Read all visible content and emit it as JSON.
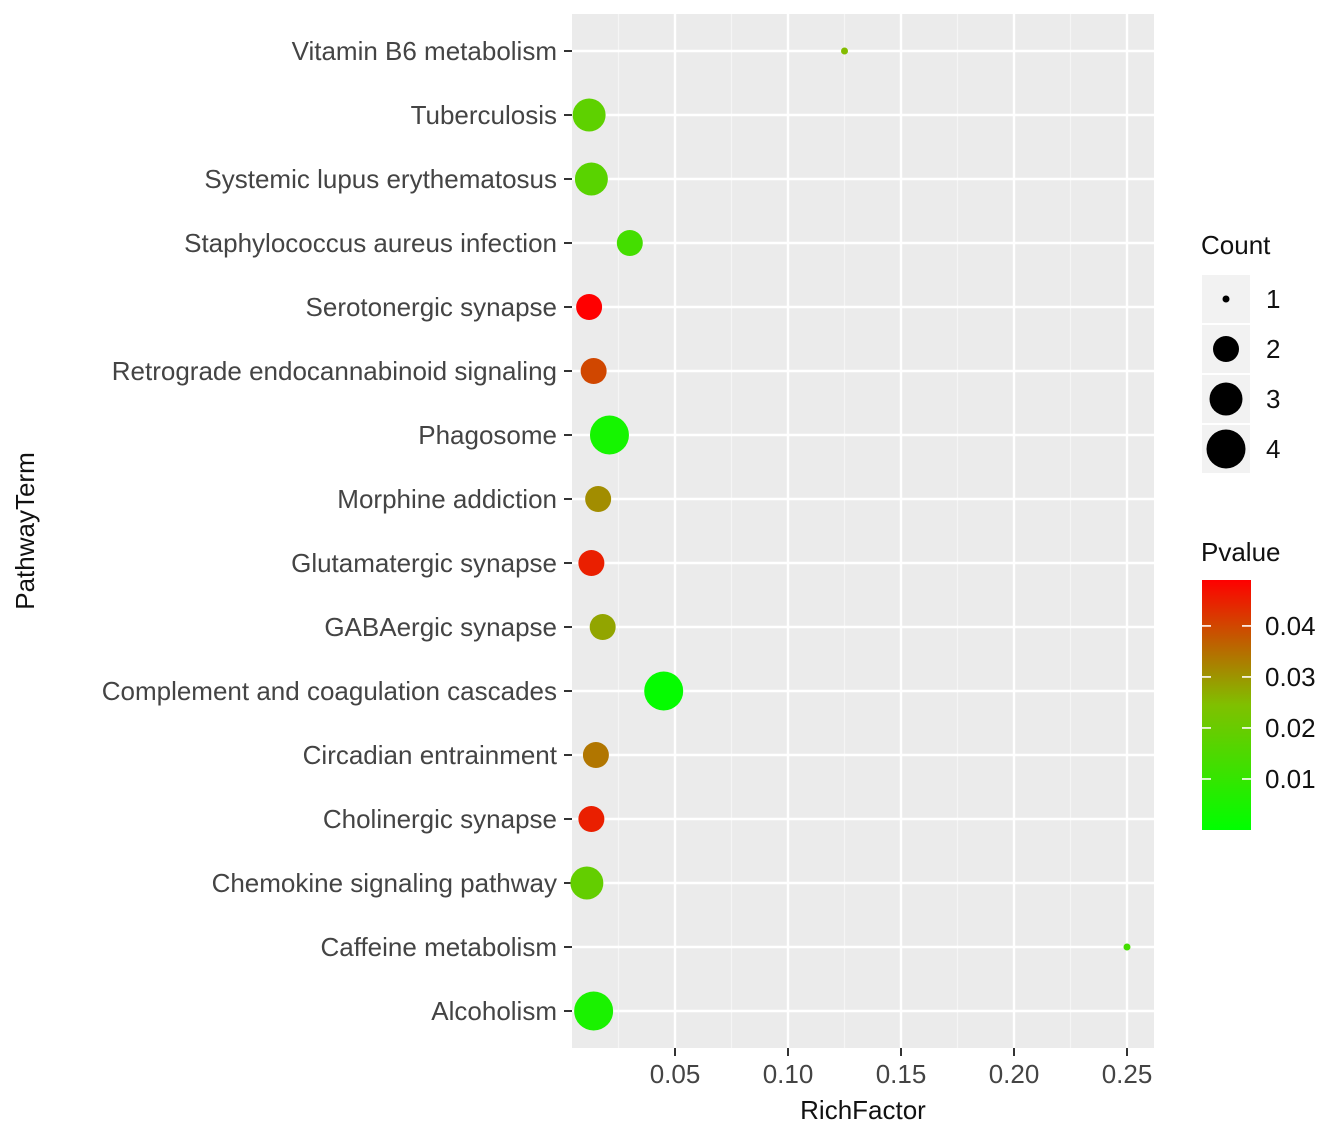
{
  "chart_data": {
    "type": "scatter",
    "title": "",
    "xlabel": "RichFactor",
    "ylabel": "PathwayTerm",
    "xlim": [
      0.0,
      0.257
    ],
    "x_ticks": [
      0.05,
      0.1,
      0.15,
      0.2,
      0.25
    ],
    "x_tick_labels": [
      "0.05",
      "0.10",
      "0.15",
      "0.20",
      "0.25"
    ],
    "grid": true,
    "categories": [
      "Vitamin B6 metabolism",
      "Tuberculosis",
      "Systemic lupus erythematosus",
      "Staphylococcus aureus infection",
      "Serotonergic synapse",
      "Retrograde endocannabinoid signaling",
      "Phagosome",
      "Morphine addiction",
      "Glutamatergic synapse",
      "GABAergic synapse",
      "Complement and coagulation cascades",
      "Circadian entrainment",
      "Cholinergic synapse",
      "Chemokine signaling pathway",
      "Caffeine metabolism",
      "Alcoholism"
    ],
    "points": [
      {
        "term": "Vitamin B6 metabolism",
        "richfactor": 0.125,
        "count": 1,
        "pvalue": 0.025
      },
      {
        "term": "Tuberculosis",
        "richfactor": 0.012,
        "count": 3,
        "pvalue": 0.018
      },
      {
        "term": "Systemic lupus erythematosus",
        "richfactor": 0.013,
        "count": 3,
        "pvalue": 0.017
      },
      {
        "term": "Staphylococcus aureus infection",
        "richfactor": 0.03,
        "count": 2,
        "pvalue": 0.013
      },
      {
        "term": "Serotonergic synapse",
        "richfactor": 0.012,
        "count": 2,
        "pvalue": 0.049
      },
      {
        "term": "Retrograde endocannabinoid signaling",
        "richfactor": 0.014,
        "count": 2,
        "pvalue": 0.04
      },
      {
        "term": "Phagosome",
        "richfactor": 0.021,
        "count": 4,
        "pvalue": 0.004
      },
      {
        "term": "Morphine addiction",
        "richfactor": 0.016,
        "count": 2,
        "pvalue": 0.031
      },
      {
        "term": "Glutamatergic synapse",
        "richfactor": 0.013,
        "count": 2,
        "pvalue": 0.045
      },
      {
        "term": "GABAergic synapse",
        "richfactor": 0.018,
        "count": 2,
        "pvalue": 0.028
      },
      {
        "term": "Complement and coagulation cascades",
        "richfactor": 0.045,
        "count": 4,
        "pvalue": 0.001
      },
      {
        "term": "Circadian entrainment",
        "richfactor": 0.015,
        "count": 2,
        "pvalue": 0.034
      },
      {
        "term": "Cholinergic synapse",
        "richfactor": 0.013,
        "count": 2,
        "pvalue": 0.045
      },
      {
        "term": "Chemokine signaling pathway",
        "richfactor": 0.011,
        "count": 3,
        "pvalue": 0.019
      },
      {
        "term": "Caffeine metabolism",
        "richfactor": 0.25,
        "count": 1,
        "pvalue": 0.013
      },
      {
        "term": "Alcoholism",
        "richfactor": 0.014,
        "count": 4,
        "pvalue": 0.005
      }
    ],
    "legend_count": {
      "title": "Count",
      "values": [
        1,
        2,
        3,
        4
      ],
      "labels": [
        "1",
        "2",
        "3",
        "4"
      ]
    },
    "legend_pvalue": {
      "title": "Pvalue",
      "min": 0.0,
      "max": 0.049,
      "ticks": [
        0.04,
        0.03,
        0.02,
        0.01
      ],
      "tick_labels": [
        "0.04",
        "0.03",
        "0.02",
        "0.01"
      ],
      "low_color": "#00FF00",
      "high_color": "#FF0000"
    },
    "colors": {
      "panel_background": "#EBEBEB",
      "grid_major": "#FFFFFF",
      "grid_minor": "#F5F5F5",
      "legend_key_background": "#F2F2F2",
      "size_key_fill": "#000000"
    }
  }
}
